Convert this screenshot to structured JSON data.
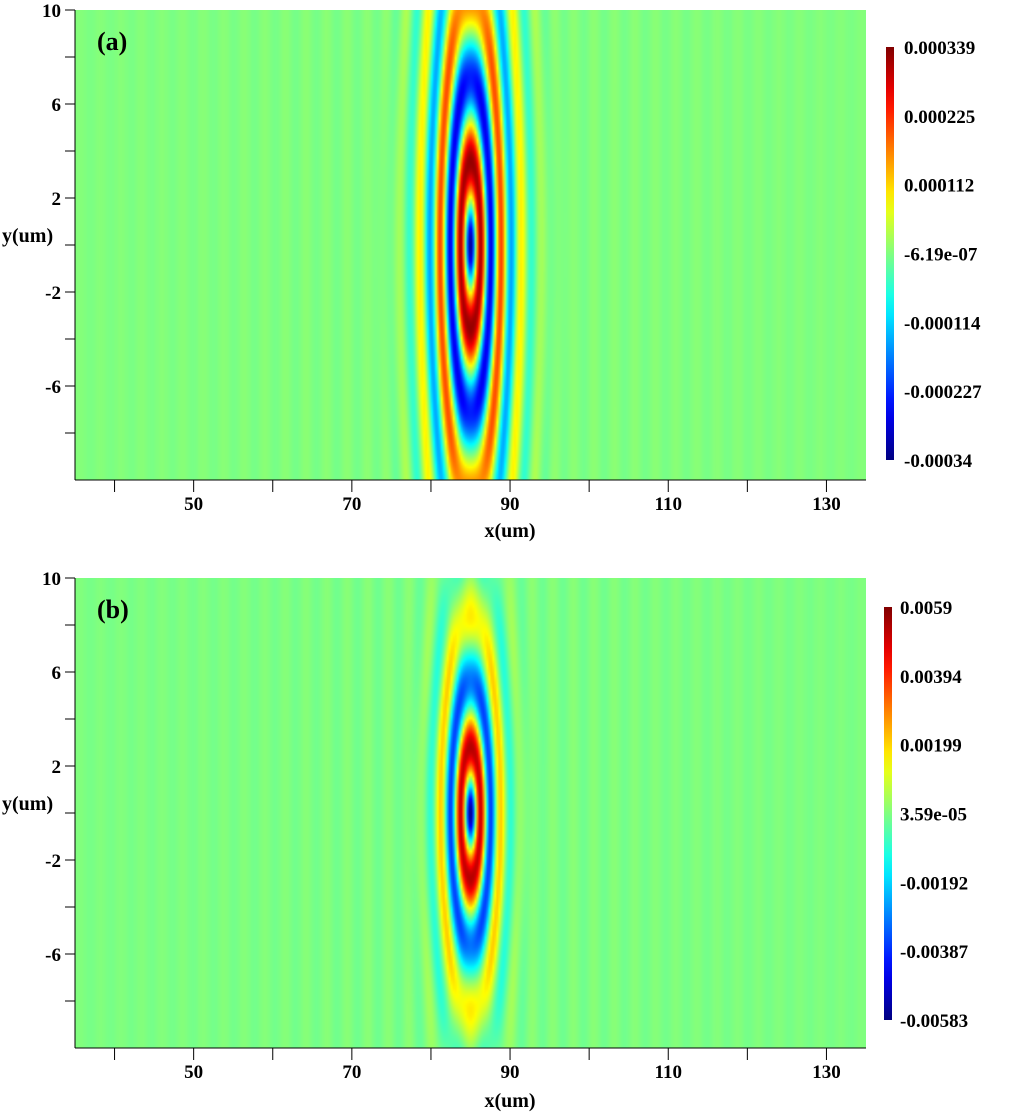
{
  "chart_data": [
    {
      "type": "heatmap",
      "panel_label": "(a)",
      "xlabel": "x(um)",
      "ylabel": "y(um)",
      "xlim": [
        35,
        135
      ],
      "ylim": [
        -10,
        10
      ],
      "x_ticks": [
        40,
        50,
        60,
        70,
        80,
        90,
        100,
        110,
        120,
        130
      ],
      "x_tick_labels": [
        "50",
        "70",
        "90",
        "110",
        "130"
      ],
      "x_tick_label_values": [
        50,
        70,
        90,
        110,
        130
      ],
      "y_ticks": [
        10,
        8,
        6,
        4,
        2,
        0,
        -2,
        -4,
        -6,
        -8
      ],
      "y_tick_labels": [
        "10",
        "6",
        "2",
        "-2",
        "-6"
      ],
      "y_tick_label_values": [
        10,
        6,
        2,
        -2,
        -6
      ],
      "colorbar": {
        "labels": [
          "0.000339",
          "0.000225",
          "0.000112",
          "-6.19e-07",
          "-0.000114",
          "-0.000227",
          "-0.00034"
        ],
        "max": 0.000339,
        "min": -0.00034,
        "colormap": "jet"
      },
      "field": {
        "center_x": 85,
        "center_y": 0,
        "amplitude": 0.000339,
        "sigma_x": 4.2,
        "sigma_y": 9.0,
        "fringe_period": 2.6,
        "ring_aspect": 0.36
      }
    },
    {
      "type": "heatmap",
      "panel_label": "(b)",
      "xlabel": "x(um)",
      "ylabel": "y(um)",
      "xlim": [
        35,
        135
      ],
      "ylim": [
        -10,
        10
      ],
      "x_ticks": [
        40,
        50,
        60,
        70,
        80,
        90,
        100,
        110,
        120,
        130
      ],
      "x_tick_labels": [
        "50",
        "70",
        "90",
        "110",
        "130"
      ],
      "x_tick_label_values": [
        50,
        70,
        90,
        110,
        130
      ],
      "y_ticks": [
        10,
        8,
        6,
        4,
        2,
        0,
        -2,
        -4,
        -6,
        -8
      ],
      "y_tick_labels": [
        "10",
        "6",
        "2",
        "-2",
        "-6"
      ],
      "y_tick_label_values": [
        10,
        6,
        2,
        -2,
        -6
      ],
      "colorbar": {
        "labels": [
          "0.0059",
          "0.00394",
          "0.00199",
          "3.59e-05",
          "-0.00192",
          "-0.00387",
          "-0.00583"
        ],
        "max": 0.0059,
        "min": -0.00583,
        "colormap": "jet"
      },
      "field": {
        "center_x": 85,
        "center_y": 0,
        "amplitude": 0.0059,
        "sigma_x": 2.8,
        "sigma_y": 5.2,
        "fringe_period": 2.6,
        "ring_aspect": 0.45
      }
    }
  ]
}
